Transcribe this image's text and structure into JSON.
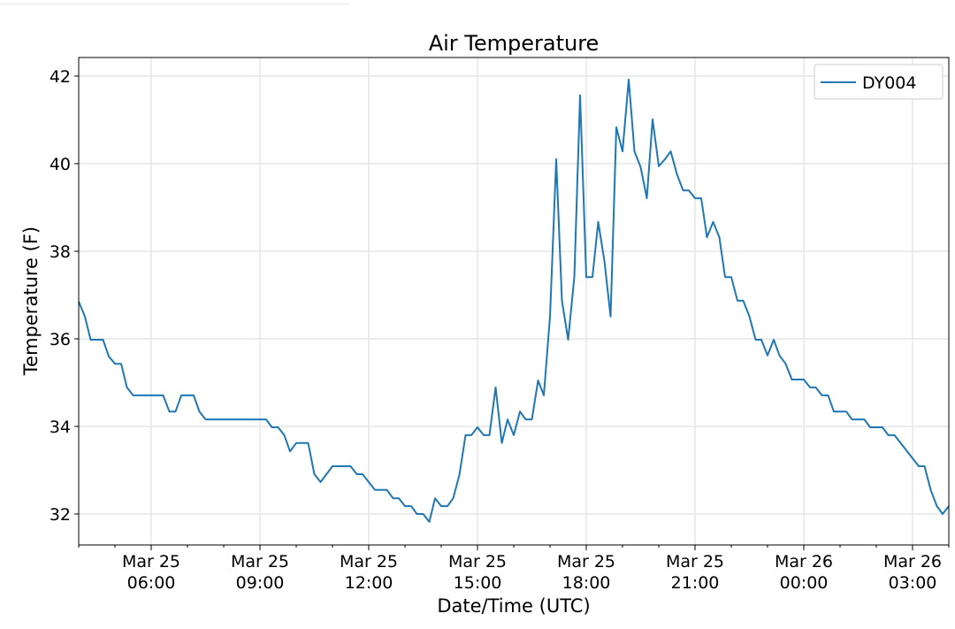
{
  "chart_data": {
    "type": "line",
    "title": "Air Temperature",
    "xlabel": "Date/Time (UTC)",
    "ylabel": "Temperature (F)",
    "x_units": "hours since Mar 25 00:00 UTC",
    "xlim": [
      4,
      28
    ],
    "ylim": [
      31.3,
      42.4
    ],
    "grid": true,
    "legend_position": "top-right",
    "y_ticks": [
      32,
      34,
      36,
      38,
      40,
      42
    ],
    "x_ticks": [
      {
        "x": 6,
        "line1": "Mar 25",
        "line2": "06:00"
      },
      {
        "x": 9,
        "line1": "Mar 25",
        "line2": "09:00"
      },
      {
        "x": 12,
        "line1": "Mar 25",
        "line2": "12:00"
      },
      {
        "x": 15,
        "line1": "Mar 25",
        "line2": "15:00"
      },
      {
        "x": 18,
        "line1": "Mar 25",
        "line2": "18:00"
      },
      {
        "x": 21,
        "line1": "Mar 25",
        "line2": "21:00"
      },
      {
        "x": 24,
        "line1": "Mar 26",
        "line2": "00:00"
      },
      {
        "x": 27,
        "line1": "Mar 26",
        "line2": "03:00"
      }
    ],
    "series": [
      {
        "name": "DY004",
        "color": "#1f77b4",
        "points": [
          [
            4.0,
            36.85
          ],
          [
            4.17,
            36.51
          ],
          [
            4.33,
            35.98
          ],
          [
            4.67,
            35.98
          ],
          [
            4.83,
            35.6
          ],
          [
            5.0,
            35.43
          ],
          [
            5.17,
            35.43
          ],
          [
            5.33,
            34.89
          ],
          [
            5.5,
            34.71
          ],
          [
            6.33,
            34.71
          ],
          [
            6.5,
            34.34
          ],
          [
            6.67,
            34.34
          ],
          [
            6.83,
            34.71
          ],
          [
            7.17,
            34.71
          ],
          [
            7.33,
            34.34
          ],
          [
            7.5,
            34.16
          ],
          [
            9.17,
            34.16
          ],
          [
            9.33,
            33.98
          ],
          [
            9.5,
            33.98
          ],
          [
            9.67,
            33.8
          ],
          [
            9.83,
            33.43
          ],
          [
            10.0,
            33.62
          ],
          [
            10.33,
            33.62
          ],
          [
            10.5,
            32.91
          ],
          [
            10.67,
            32.73
          ],
          [
            11.0,
            33.09
          ],
          [
            11.5,
            33.09
          ],
          [
            11.67,
            32.91
          ],
          [
            11.83,
            32.91
          ],
          [
            12.17,
            32.55
          ],
          [
            12.5,
            32.55
          ],
          [
            12.67,
            32.36
          ],
          [
            12.83,
            32.36
          ],
          [
            13.0,
            32.18
          ],
          [
            13.17,
            32.18
          ],
          [
            13.33,
            32.0
          ],
          [
            13.5,
            32.0
          ],
          [
            13.67,
            31.82
          ],
          [
            13.83,
            32.36
          ],
          [
            14.0,
            32.18
          ],
          [
            14.17,
            32.18
          ],
          [
            14.33,
            32.36
          ],
          [
            14.5,
            32.89
          ],
          [
            14.67,
            33.8
          ],
          [
            14.83,
            33.8
          ],
          [
            15.0,
            33.98
          ],
          [
            15.17,
            33.8
          ],
          [
            15.33,
            33.8
          ],
          [
            15.5,
            34.89
          ],
          [
            15.67,
            33.62
          ],
          [
            15.83,
            34.16
          ],
          [
            16.0,
            33.8
          ],
          [
            16.17,
            34.34
          ],
          [
            16.33,
            34.16
          ],
          [
            16.5,
            34.16
          ],
          [
            16.67,
            35.05
          ],
          [
            16.83,
            34.71
          ],
          [
            17.0,
            36.51
          ],
          [
            17.17,
            40.1
          ],
          [
            17.33,
            36.87
          ],
          [
            17.5,
            35.98
          ],
          [
            17.67,
            37.41
          ],
          [
            17.83,
            41.56
          ],
          [
            18.0,
            37.41
          ],
          [
            18.17,
            37.41
          ],
          [
            18.33,
            38.67
          ],
          [
            18.5,
            37.78
          ],
          [
            18.67,
            36.51
          ],
          [
            18.83,
            40.83
          ],
          [
            19.0,
            40.28
          ],
          [
            19.17,
            41.92
          ],
          [
            19.33,
            40.28
          ],
          [
            19.5,
            39.92
          ],
          [
            19.67,
            39.21
          ],
          [
            19.83,
            41.01
          ],
          [
            20.0,
            39.94
          ],
          [
            20.17,
            40.1
          ],
          [
            20.33,
            40.28
          ],
          [
            20.5,
            39.76
          ],
          [
            20.67,
            39.39
          ],
          [
            20.83,
            39.39
          ],
          [
            21.0,
            39.21
          ],
          [
            21.17,
            39.21
          ],
          [
            21.33,
            38.32
          ],
          [
            21.5,
            38.67
          ],
          [
            21.67,
            38.32
          ],
          [
            21.83,
            37.41
          ],
          [
            22.0,
            37.41
          ],
          [
            22.17,
            36.87
          ],
          [
            22.33,
            36.87
          ],
          [
            22.5,
            36.51
          ],
          [
            22.67,
            35.98
          ],
          [
            22.83,
            35.98
          ],
          [
            23.0,
            35.62
          ],
          [
            23.17,
            35.98
          ],
          [
            23.33,
            35.62
          ],
          [
            23.5,
            35.43
          ],
          [
            23.67,
            35.07
          ],
          [
            24.0,
            35.07
          ],
          [
            24.17,
            34.89
          ],
          [
            24.33,
            34.89
          ],
          [
            24.5,
            34.71
          ],
          [
            24.67,
            34.71
          ],
          [
            24.83,
            34.34
          ],
          [
            25.17,
            34.34
          ],
          [
            25.33,
            34.16
          ],
          [
            25.67,
            34.16
          ],
          [
            25.83,
            33.98
          ],
          [
            26.17,
            33.98
          ],
          [
            26.33,
            33.8
          ],
          [
            26.5,
            33.8
          ],
          [
            26.67,
            33.62
          ],
          [
            27.17,
            33.09
          ],
          [
            27.33,
            33.09
          ],
          [
            27.5,
            32.55
          ],
          [
            27.67,
            32.18
          ],
          [
            27.83,
            32.0
          ],
          [
            28.0,
            32.18
          ]
        ]
      }
    ]
  }
}
